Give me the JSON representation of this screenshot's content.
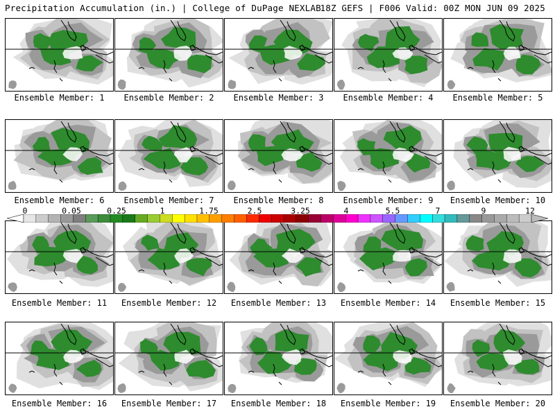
{
  "header": {
    "left": "Precipitation Accumulation (in.) | College of DuPage NEXLAB",
    "right": "18Z GEFS | F006 Valid: 00Z MON JUN 09 2025"
  },
  "panels": [
    {
      "caption": "Ensemble Member: 1"
    },
    {
      "caption": "Ensemble Member: 2"
    },
    {
      "caption": "Ensemble Member: 3"
    },
    {
      "caption": "Ensemble Member: 4"
    },
    {
      "caption": "Ensemble Member: 5"
    },
    {
      "caption": "Ensemble Member: 6"
    },
    {
      "caption": "Ensemble Member: 7"
    },
    {
      "caption": "Ensemble Member: 8"
    },
    {
      "caption": "Ensemble Member: 9"
    },
    {
      "caption": "Ensemble Member: 10"
    },
    {
      "caption": "Ensemble Member: 11"
    },
    {
      "caption": "Ensemble Member: 12"
    },
    {
      "caption": "Ensemble Member: 13"
    },
    {
      "caption": "Ensemble Member: 14"
    },
    {
      "caption": "Ensemble Member: 15"
    },
    {
      "caption": "Ensemble Member: 16"
    },
    {
      "caption": "Ensemble Member: 17"
    },
    {
      "caption": "Ensemble Member: 18"
    },
    {
      "caption": "Ensemble Member: 19"
    },
    {
      "caption": "Ensemble Member: 20"
    }
  ],
  "colorbar": {
    "labels": [
      "0",
      "0.05",
      "0.25",
      "1",
      "1.75",
      "2.5",
      "3.25",
      "4",
      "5.5",
      "7",
      "9",
      "12"
    ],
    "colors": [
      "#e6e6e6",
      "#cccccc",
      "#b3b3b3",
      "#999999",
      "#7f7f7f",
      "#5a9a5a",
      "#3c8c3c",
      "#228b22",
      "#1a7a1a",
      "#66aa22",
      "#99cc33",
      "#ccdd22",
      "#ffff00",
      "#ffe000",
      "#ffbf00",
      "#ff9f00",
      "#ff7f00",
      "#ff5f00",
      "#ff2a00",
      "#ee0000",
      "#cc0000",
      "#aa0000",
      "#8b0000",
      "#990033",
      "#bb0066",
      "#dd0099",
      "#ff00cc",
      "#ee33ff",
      "#cc55ff",
      "#9966ff",
      "#6699ff",
      "#33ccff",
      "#00ffff",
      "#33dddd",
      "#33bbbb",
      "#669999",
      "#888888",
      "#999999",
      "#aaaaaa",
      "#bbbbbb",
      "#cccccc"
    ],
    "colors_meaning": "accumulation color scale from light gray (low) through greens, yellows, reds, magentas, cyans to grays (high)"
  }
}
